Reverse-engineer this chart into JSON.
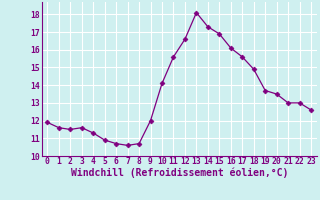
{
  "x": [
    0,
    1,
    2,
    3,
    4,
    5,
    6,
    7,
    8,
    9,
    10,
    11,
    12,
    13,
    14,
    15,
    16,
    17,
    18,
    19,
    20,
    21,
    22,
    23
  ],
  "y": [
    11.9,
    11.6,
    11.5,
    11.6,
    11.3,
    10.9,
    10.7,
    10.6,
    10.7,
    12.0,
    14.1,
    15.6,
    16.6,
    18.1,
    17.3,
    16.9,
    16.1,
    15.6,
    14.9,
    13.7,
    13.5,
    13.0,
    13.0,
    12.6
  ],
  "line_color": "#800080",
  "marker": "D",
  "marker_size": 2.5,
  "bg_color": "#cff0f0",
  "grid_color": "#ffffff",
  "xlim": [
    -0.5,
    23.5
  ],
  "ylim": [
    10,
    18.7
  ],
  "yticks": [
    10,
    11,
    12,
    13,
    14,
    15,
    16,
    17,
    18
  ],
  "xticks": [
    0,
    1,
    2,
    3,
    4,
    5,
    6,
    7,
    8,
    9,
    10,
    11,
    12,
    13,
    14,
    15,
    16,
    17,
    18,
    19,
    20,
    21,
    22,
    23
  ],
  "xlabel": "Windchill (Refroidissement éolien,°C)",
  "font_color": "#800080",
  "tick_fontsize": 5.8,
  "label_fontsize": 7.0
}
